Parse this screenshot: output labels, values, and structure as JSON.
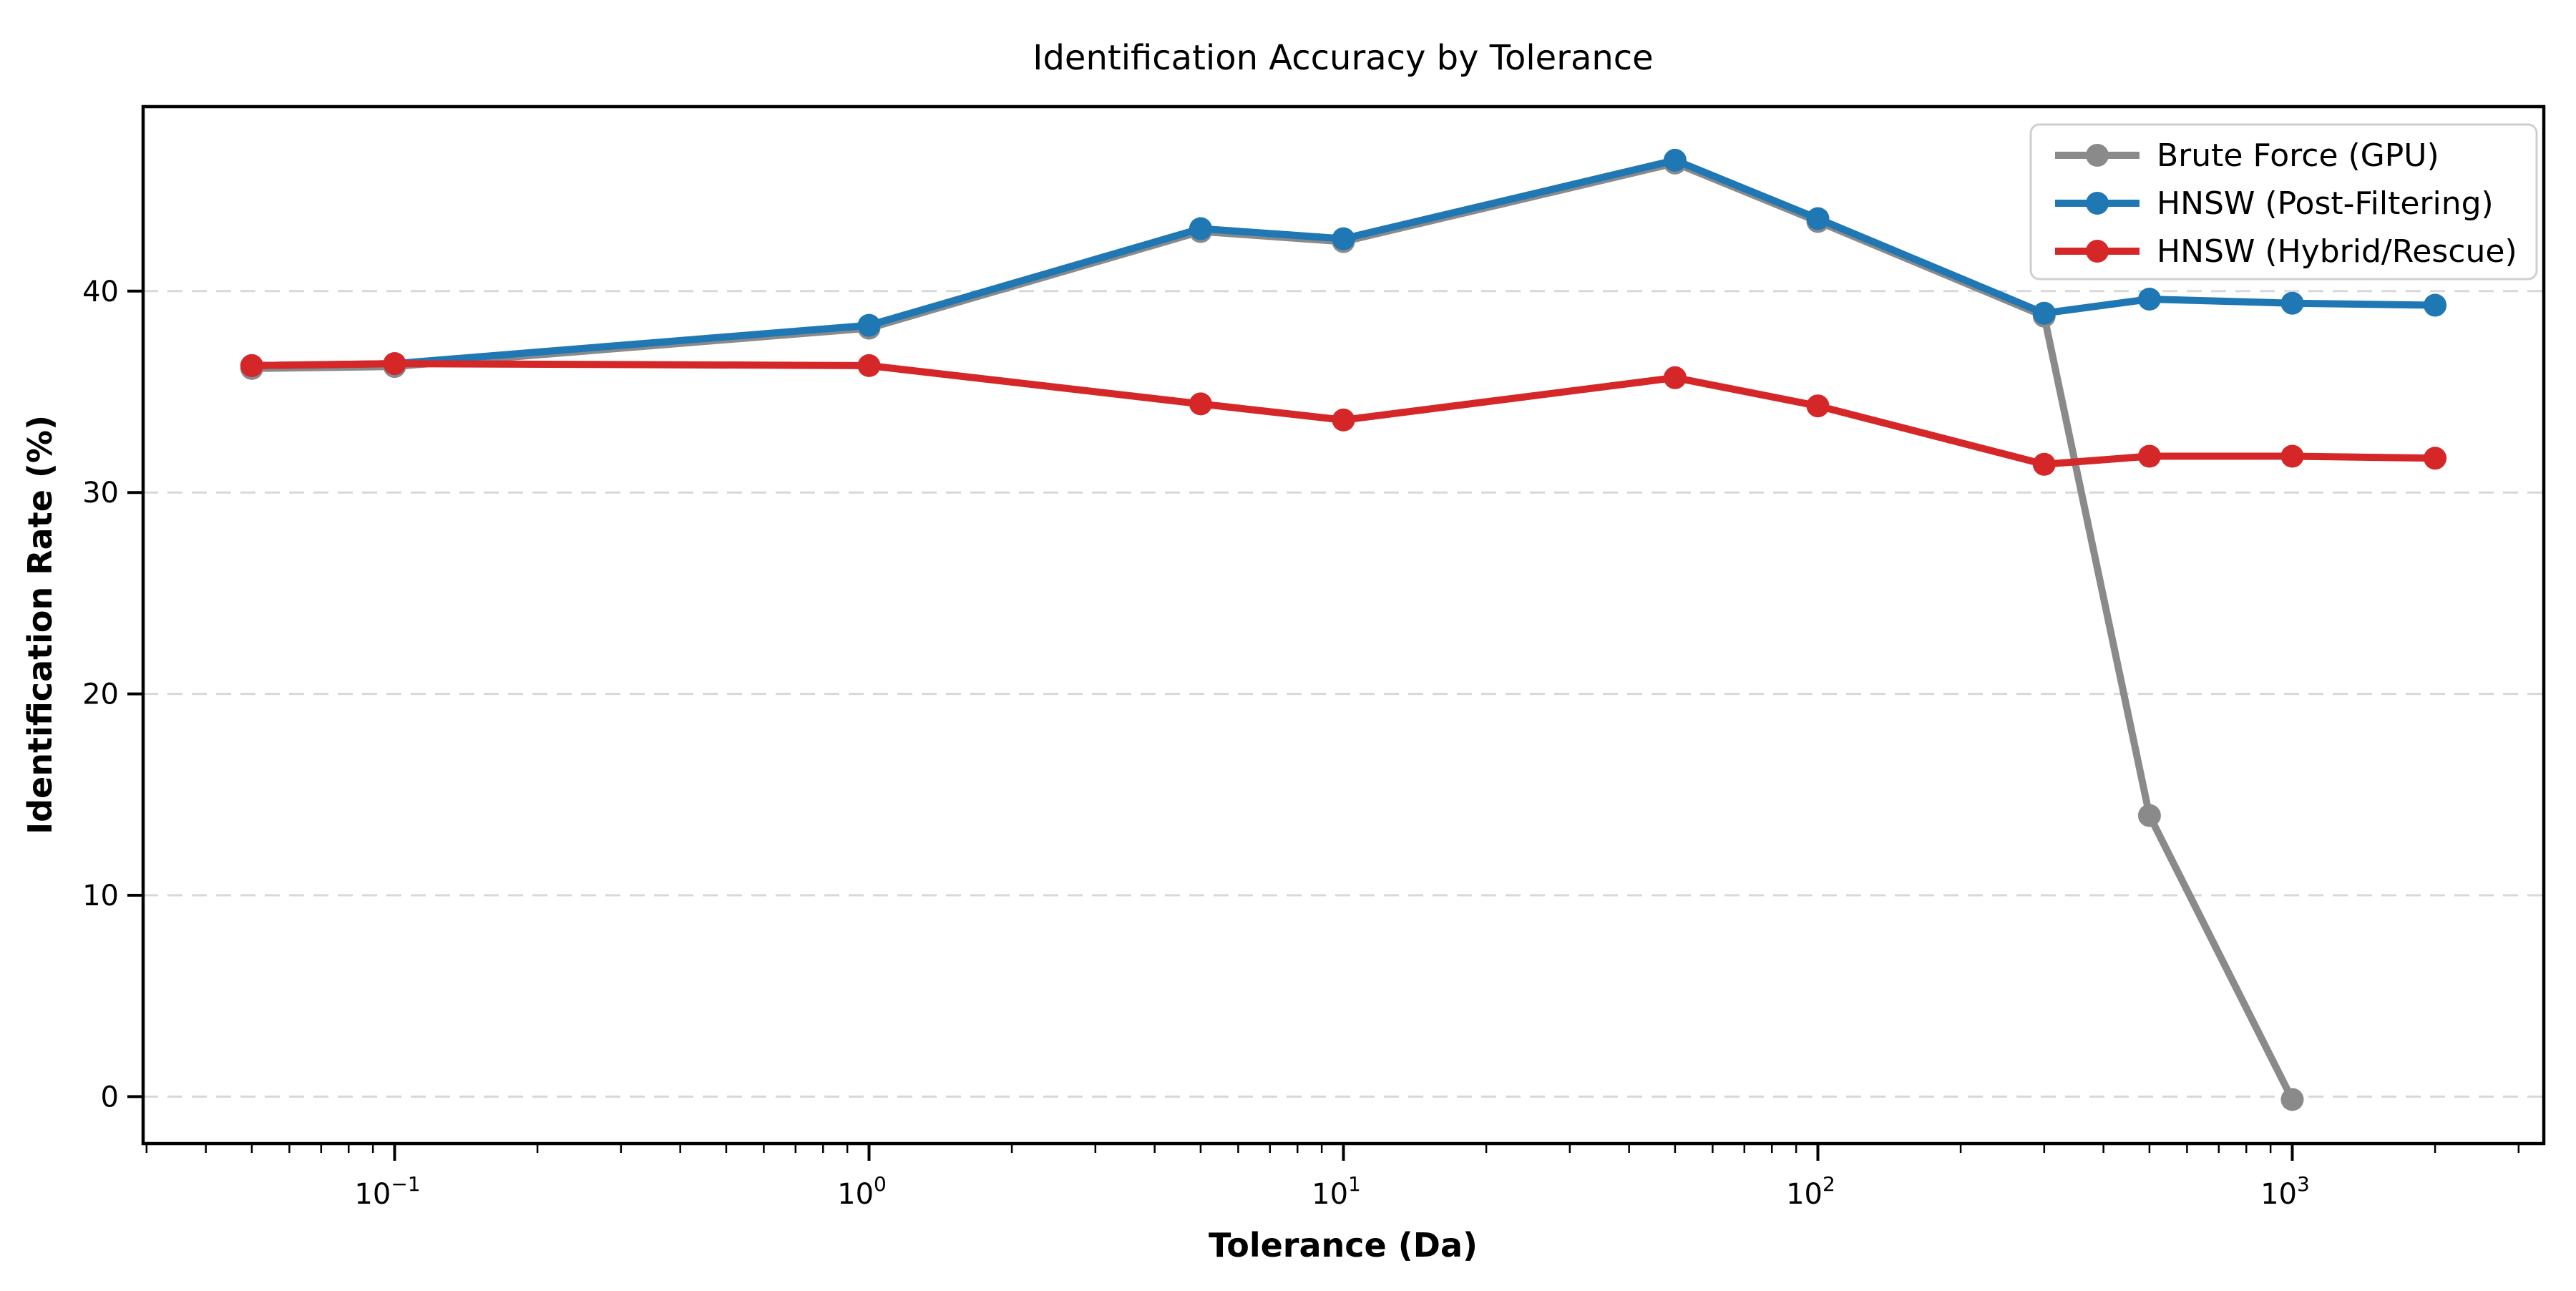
{
  "chart_data": {
    "type": "line",
    "title": "Identification Accuracy by Tolerance",
    "xlabel": "Tolerance (Da)",
    "ylabel": "Identification Rate (%)",
    "x_scale": "log",
    "xlim": [
      0.0295,
      3390
    ],
    "ylim": [
      -2.33,
      49.16
    ],
    "grid": "horizontal-dashed",
    "grid_color": "#d8d8d8",
    "axis_color": "#000000",
    "legend_position": "upper-right",
    "x_major_ticks": [
      {
        "value": 0.1,
        "base": "10",
        "exp": "−1"
      },
      {
        "value": 1,
        "base": "10",
        "exp": "0"
      },
      {
        "value": 10,
        "base": "10",
        "exp": "1"
      },
      {
        "value": 100,
        "base": "10",
        "exp": "2"
      },
      {
        "value": 1000,
        "base": "10",
        "exp": "3"
      }
    ],
    "y_ticks": [
      {
        "value": 0,
        "label": "0"
      },
      {
        "value": 10,
        "label": "10"
      },
      {
        "value": 20,
        "label": "20"
      },
      {
        "value": 30,
        "label": "30"
      },
      {
        "value": 40,
        "label": "40"
      }
    ],
    "series": [
      {
        "name": "Brute Force (GPU)",
        "color": "#8a8a8a",
        "marker": "circle",
        "x": [
          0.05,
          0.1,
          1,
          5,
          10,
          50,
          100,
          300,
          500,
          1000
        ],
        "y": [
          36.3,
          36.4,
          38.3,
          43.1,
          42.6,
          46.5,
          43.6,
          38.9,
          14.1,
          0.0
        ]
      },
      {
        "name": "HNSW (Post-Filtering)",
        "color": "#1f77b4",
        "marker": "circle",
        "x": [
          0.05,
          0.1,
          1,
          5,
          10,
          50,
          100,
          300,
          500,
          1000,
          2000
        ],
        "y": [
          36.3,
          36.4,
          38.3,
          43.1,
          42.6,
          46.5,
          43.6,
          38.9,
          39.6,
          39.4,
          39.3
        ]
      },
      {
        "name": "HNSW (Hybrid/Rescue)",
        "color": "#d62728",
        "marker": "circle",
        "x": [
          0.05,
          0.1,
          1,
          5,
          10,
          50,
          100,
          300,
          500,
          1000,
          2000
        ],
        "y": [
          36.3,
          36.4,
          36.3,
          34.4,
          33.6,
          35.7,
          34.3,
          31.4,
          31.8,
          31.8,
          31.7
        ]
      }
    ]
  }
}
